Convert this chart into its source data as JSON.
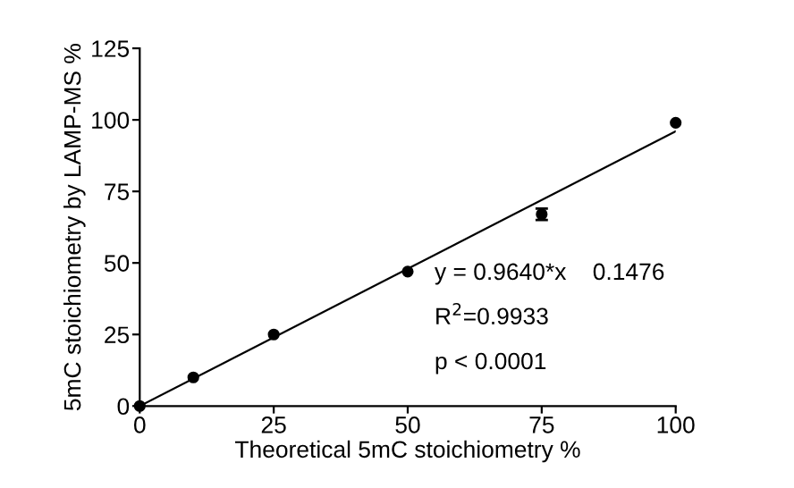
{
  "chart_data": {
    "type": "scatter",
    "xlabel": "Theoretical 5mC stoichiometry %",
    "ylabel": "5mC stoichiometry by LAMP-MS %",
    "xlim": [
      0,
      100
    ],
    "ylim": [
      0,
      125
    ],
    "xticks": [
      0,
      25,
      50,
      75,
      100
    ],
    "yticks": [
      0,
      25,
      50,
      75,
      100,
      125
    ],
    "series": [
      {
        "color": "#000000",
        "x": [
          0,
          10,
          25,
          50,
          75,
          100
        ],
        "values": [
          0,
          10,
          25,
          47,
          67,
          99
        ],
        "errors": [
          null,
          null,
          null,
          null,
          2,
          null
        ],
        "marker": "circle"
      },
      {
        "type": "line",
        "color": "#000000",
        "x": [
          0,
          100
        ],
        "values": [
          0,
          96
        ],
        "marker": "none",
        "line_style": "solid"
      }
    ],
    "annotations": [
      "y = 0.9640*x    0.1476",
      "R$^{2}$=0.9933",
      "p < 0.0001"
    ],
    "grid": false,
    "legend": false
  }
}
